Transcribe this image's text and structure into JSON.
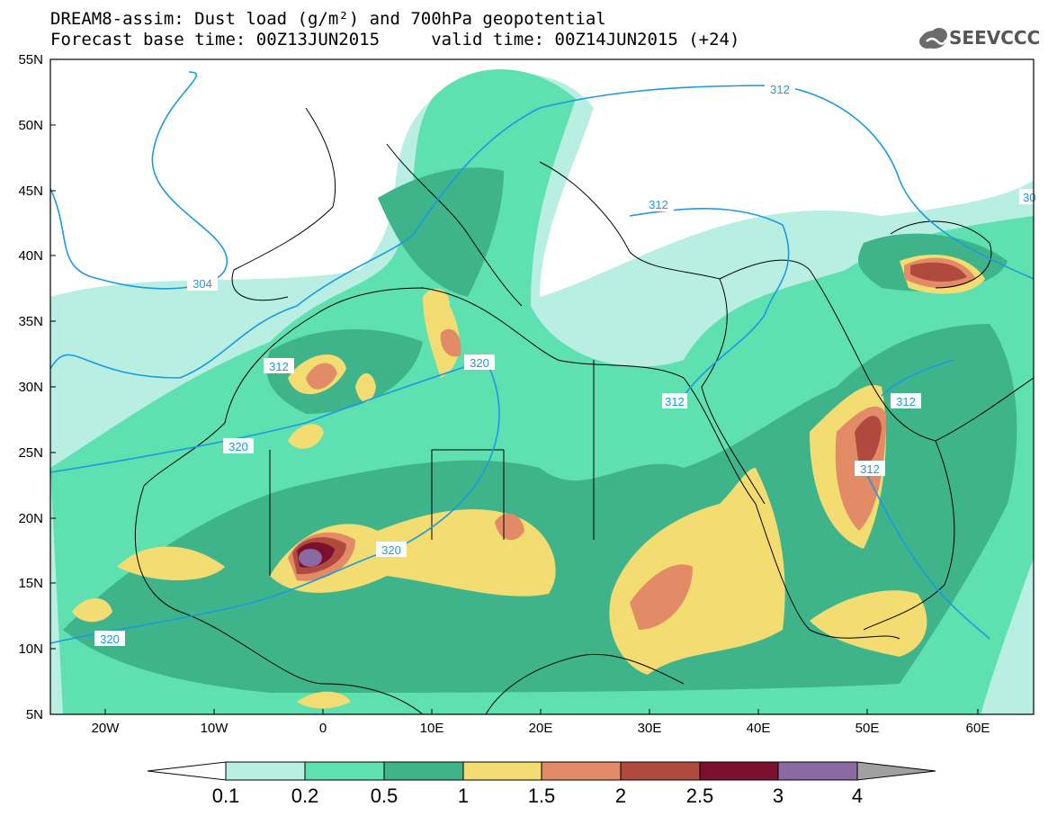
{
  "title": {
    "line1": "DREAM8-assim: Dust load (g/m²) and 700hPa geopotential",
    "line2": "Forecast base time: 00Z13JUN2015     valid time: 00Z14JUN2015 (+24)"
  },
  "logo": {
    "text": "SEEVCCC",
    "icon": "cloud-icon"
  },
  "axes": {
    "lat_labels": [
      "55N",
      "50N",
      "45N",
      "40N",
      "35N",
      "30N",
      "25N",
      "20N",
      "15N",
      "10N",
      "5N"
    ],
    "lon_labels": [
      "20W",
      "10W",
      "0",
      "10E",
      "20E",
      "30E",
      "40E",
      "50E",
      "60E"
    ]
  },
  "contour_labels": [
    "312",
    "312",
    "304",
    "312",
    "320",
    "312",
    "312",
    "320",
    "312",
    "320",
    "320",
    "30"
  ],
  "colorbar": {
    "ticks": [
      "0.1",
      "0.2",
      "0.5",
      "1",
      "1.5",
      "2",
      "2.5",
      "3",
      "4"
    ],
    "colors": [
      "#ffffff",
      "#b9eee2",
      "#5fe0b0",
      "#3fb48a",
      "#f3dc72",
      "#e38a66",
      "#b04a3e",
      "#7d0f2e",
      "#8a6aa3",
      "#a0a0a0"
    ]
  },
  "colors": {
    "land_outline": "#000000",
    "ocean": "#ffffff",
    "contour": "#1a9ae0"
  }
}
